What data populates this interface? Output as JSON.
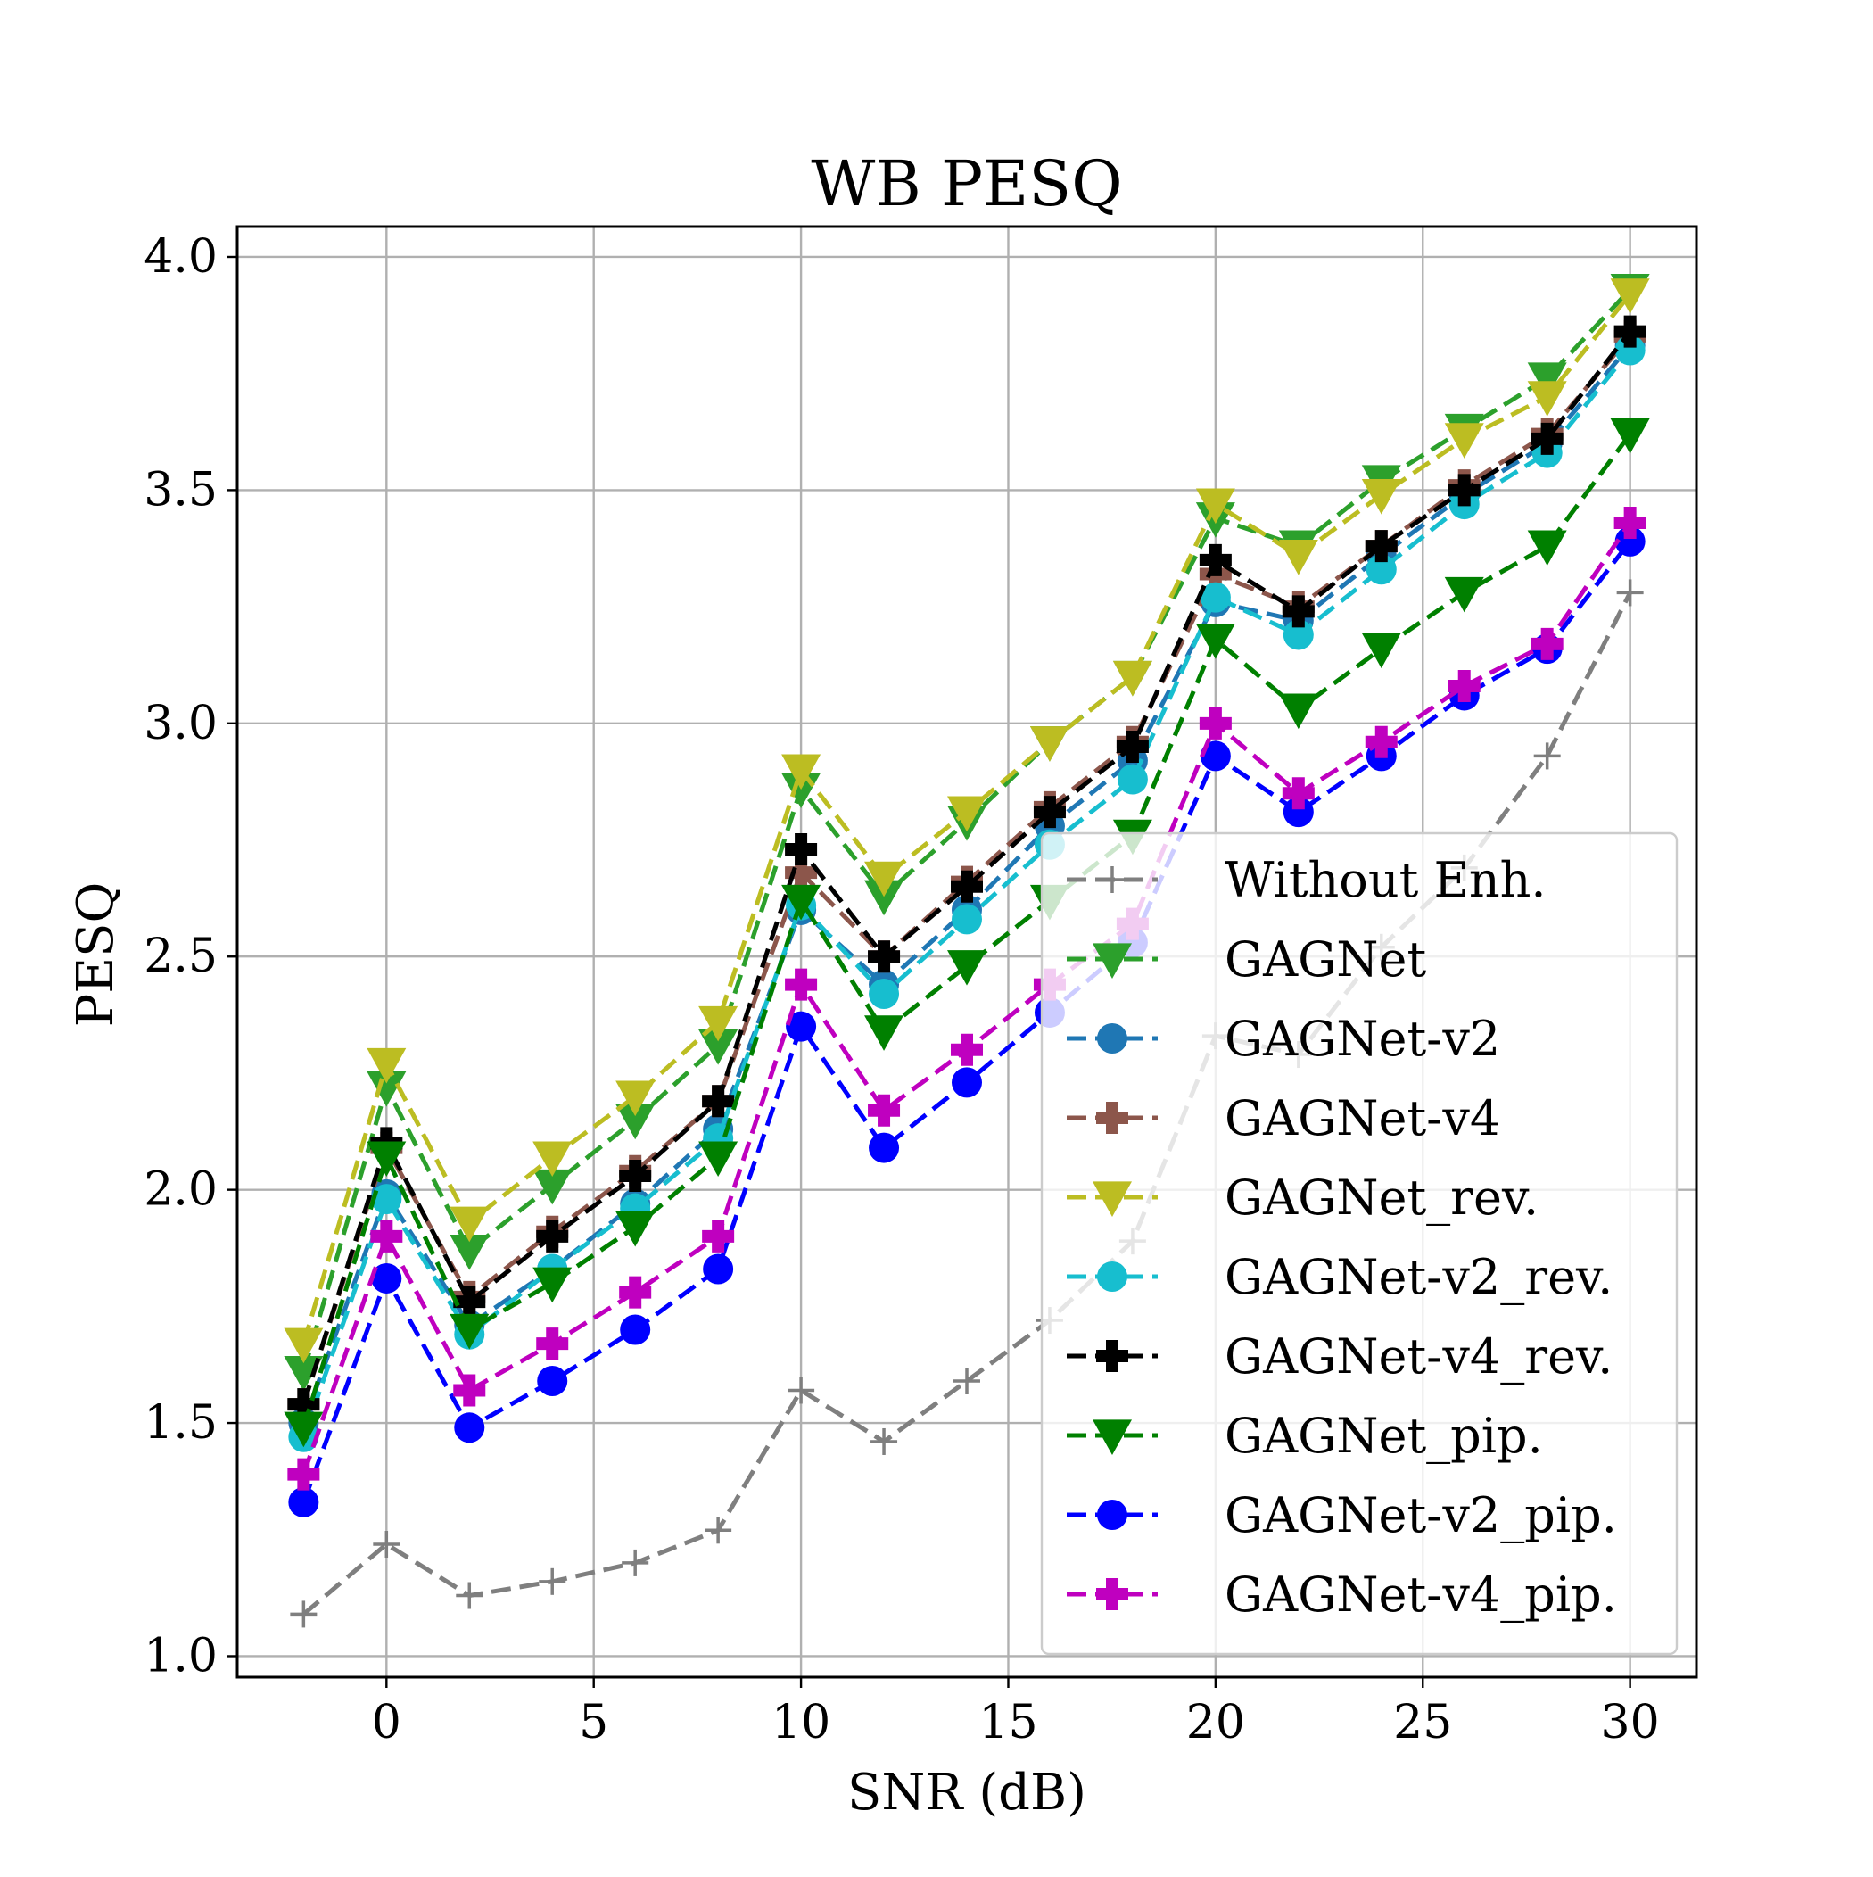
{
  "chart_data": {
    "type": "line",
    "title": "WB PESQ",
    "xlabel": "SNR (dB)",
    "ylabel": "PESQ",
    "xlim": [
      -3.6,
      31.6
    ],
    "ylim": [
      0.955,
      4.065
    ],
    "xticks": [
      0,
      5,
      10,
      15,
      20,
      25,
      30
    ],
    "xtick_labels": [
      "0",
      "5",
      "10",
      "15",
      "20",
      "25",
      "30"
    ],
    "yticks": [
      1.0,
      1.5,
      2.0,
      2.5,
      3.0,
      3.5,
      4.0
    ],
    "ytick_labels": [
      "1.0",
      "1.5",
      "2.0",
      "2.5",
      "3.0",
      "3.5",
      "4.0"
    ],
    "grid": true,
    "legend_position": "lower-right",
    "x": [
      -2,
      0,
      2,
      4,
      6,
      8,
      10,
      12,
      14,
      16,
      18,
      20,
      22,
      24,
      26,
      28,
      30
    ],
    "series": [
      {
        "name": "Without Enh.",
        "color": "#7f7f7f",
        "marker": "plus",
        "line": "dashed",
        "values": [
          1.09,
          1.24,
          1.13,
          1.16,
          1.2,
          1.27,
          1.57,
          1.46,
          1.59,
          1.72,
          1.89,
          2.33,
          2.29,
          2.52,
          2.69,
          2.93,
          3.28
        ]
      },
      {
        "name": "GAGNet",
        "color": "#2ca02c",
        "marker": "triangle-down",
        "line": "dashed",
        "values": [
          1.61,
          2.22,
          1.87,
          2.01,
          2.15,
          2.31,
          2.86,
          2.63,
          2.79,
          2.96,
          3.1,
          3.44,
          3.38,
          3.52,
          3.63,
          3.74,
          3.93
        ]
      },
      {
        "name": "GAGNet-v2",
        "color": "#1f77b4",
        "marker": "circle",
        "line": "dashed",
        "values": [
          1.5,
          1.99,
          1.71,
          1.83,
          1.97,
          2.13,
          2.6,
          2.44,
          2.6,
          2.78,
          2.92,
          3.26,
          3.22,
          3.36,
          3.49,
          3.6,
          3.81
        ]
      },
      {
        "name": "GAGNet-v4",
        "color": "#8c564b",
        "marker": "plus-filled",
        "line": "dashed",
        "values": [
          1.54,
          2.09,
          1.77,
          1.91,
          2.04,
          2.19,
          2.68,
          2.5,
          2.66,
          2.82,
          2.96,
          3.32,
          3.25,
          3.38,
          3.51,
          3.62,
          3.83
        ]
      },
      {
        "name": "GAGNet_rev.",
        "color": "#bcbd22",
        "marker": "triangle-down",
        "line": "dashed",
        "values": [
          1.67,
          2.27,
          1.93,
          2.07,
          2.2,
          2.36,
          2.9,
          2.67,
          2.81,
          2.96,
          3.1,
          3.47,
          3.36,
          3.49,
          3.61,
          3.7,
          3.92
        ]
      },
      {
        "name": "GAGNet-v2_rev.",
        "color": "#17becf",
        "marker": "circle",
        "line": "dashed",
        "values": [
          1.47,
          1.98,
          1.69,
          1.83,
          1.96,
          2.11,
          2.61,
          2.42,
          2.58,
          2.74,
          2.88,
          3.27,
          3.19,
          3.33,
          3.47,
          3.58,
          3.8
        ]
      },
      {
        "name": "GAGNet-v4_rev.",
        "color": "#000000",
        "marker": "plus-filled",
        "line": "dashed",
        "values": [
          1.54,
          2.1,
          1.76,
          1.9,
          2.03,
          2.19,
          2.73,
          2.5,
          2.65,
          2.81,
          2.95,
          3.35,
          3.24,
          3.38,
          3.5,
          3.61,
          3.84
        ]
      },
      {
        "name": "GAGNet_pip.",
        "color": "#008000",
        "marker": "triangle-down",
        "line": "dashed",
        "values": [
          1.49,
          2.07,
          1.7,
          1.8,
          1.92,
          2.07,
          2.62,
          2.34,
          2.48,
          2.62,
          2.76,
          3.18,
          3.03,
          3.16,
          3.28,
          3.38,
          3.62
        ]
      },
      {
        "name": "GAGNet-v2_pip.",
        "color": "#0000ff",
        "marker": "circle",
        "line": "dashed",
        "values": [
          1.33,
          1.81,
          1.49,
          1.59,
          1.7,
          1.83,
          2.35,
          2.09,
          2.23,
          2.38,
          2.53,
          2.93,
          2.81,
          2.93,
          3.06,
          3.16,
          3.39
        ]
      },
      {
        "name": "GAGNet-v4_pip.",
        "color": "#bf00bf",
        "marker": "plus-filled",
        "line": "dashed",
        "values": [
          1.39,
          1.9,
          1.57,
          1.67,
          1.78,
          1.9,
          2.44,
          2.17,
          2.3,
          2.44,
          2.57,
          3.0,
          2.85,
          2.96,
          3.08,
          3.17,
          3.43
        ]
      }
    ]
  }
}
